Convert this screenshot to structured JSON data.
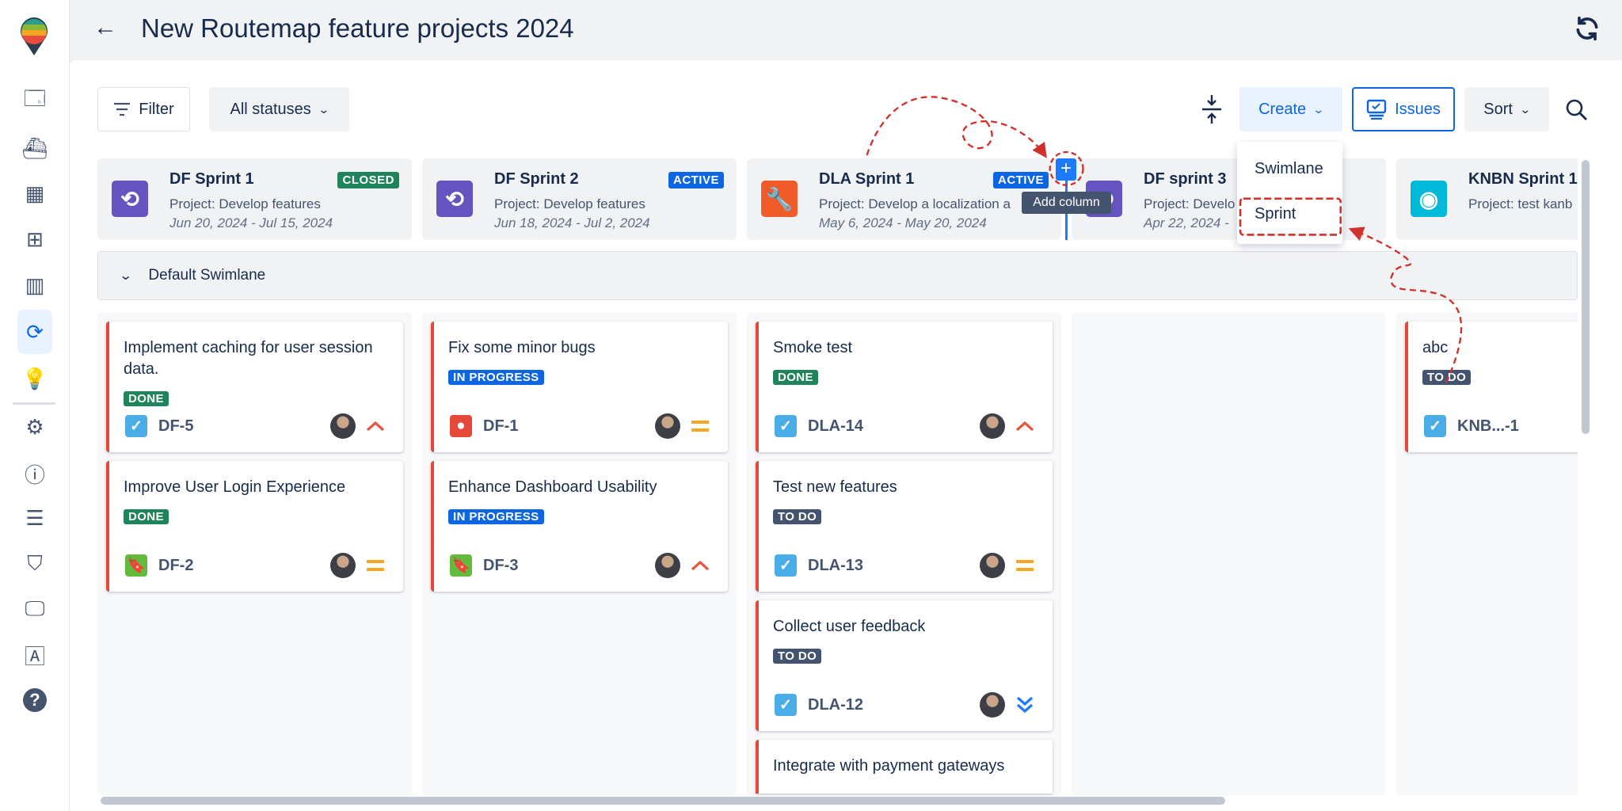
{
  "header": {
    "title": "New Routemap feature projects 2024",
    "back_icon": "arrow-left-icon",
    "refresh_icon": "refresh-icon"
  },
  "sidebar": {
    "items": [
      "board-icon",
      "ship-icon",
      "grid-icon",
      "layout-icon",
      "columns-icon",
      "routemap-icon",
      "lightbulb-icon",
      "gear-icon",
      "info-icon",
      "list-icon",
      "shield-user-icon",
      "monitor-icon",
      "abc-icon",
      "help-icon"
    ],
    "active": "routemap-icon"
  },
  "toolbar": {
    "filter_label": "Filter",
    "status_select": "All statuses",
    "create_label": "Create",
    "issues_label": "Issues",
    "sort_label": "Sort"
  },
  "create_menu": {
    "items": [
      "Swimlane",
      "Sprint"
    ],
    "highlighted": "Sprint"
  },
  "add_column": {
    "tooltip": "Add column"
  },
  "sprints": [
    {
      "name": "DF Sprint 1",
      "status": "CLOSED",
      "project": "Project: Develop features",
      "dates": "Jun 20, 2024 - Jul 15, 2024",
      "icon": "sync-icon"
    },
    {
      "name": "DF Sprint 2",
      "status": "ACTIVE",
      "project": "Project: Develop features",
      "dates": "Jun 18, 2024 - Jul 2, 2024",
      "icon": "sync-icon"
    },
    {
      "name": "DLA Sprint 1",
      "status": "ACTIVE",
      "project": "Project: Develop a localization a",
      "dates": "May 6, 2024 - May 20, 2024",
      "icon": "wrench-icon"
    },
    {
      "name": "DF sprint 3",
      "status": "",
      "project": "Project: Develo",
      "dates": "Apr 22, 2024 -",
      "icon": "sync-icon"
    },
    {
      "name": "KNBN Sprint 1",
      "status": "",
      "project": "Project: test kanb",
      "dates": "",
      "icon": "robot-icon"
    }
  ],
  "swimlane": {
    "label": "Default Swimlane"
  },
  "columns": [
    {
      "cards": [
        {
          "title": "Implement caching for user session data.",
          "status": "DONE",
          "key": "DF-5",
          "type": "task",
          "priority": "high"
        },
        {
          "title": "Improve User Login Experience",
          "status": "DONE",
          "key": "DF-2",
          "type": "story",
          "priority": "medium"
        }
      ]
    },
    {
      "cards": [
        {
          "title": "Fix some minor bugs",
          "status": "IN PROGRESS",
          "key": "DF-1",
          "type": "bug",
          "priority": "medium"
        },
        {
          "title": "Enhance Dashboard Usability",
          "status": "IN PROGRESS",
          "key": "DF-3",
          "type": "story",
          "priority": "high"
        }
      ]
    },
    {
      "cards": [
        {
          "title": "Smoke test",
          "status": "DONE",
          "key": "DLA-14",
          "type": "task",
          "priority": "high"
        },
        {
          "title": "Test new features",
          "status": "TO DO",
          "key": "DLA-13",
          "type": "task",
          "priority": "medium"
        },
        {
          "title": "Collect user feedback",
          "status": "TO DO",
          "key": "DLA-12",
          "type": "task",
          "priority": "lowest"
        },
        {
          "title": "Integrate with payment gateways",
          "status": "",
          "key": "",
          "type": "",
          "priority": ""
        }
      ]
    },
    {
      "cards": []
    },
    {
      "cards": [
        {
          "title": "abc",
          "status": "TO DO",
          "key": "KNB...-1",
          "type": "task",
          "priority": ""
        }
      ]
    }
  ],
  "colors": {
    "done": "#1f845a",
    "in_progress": "#0c66e4",
    "todo": "#44546f",
    "closed": "#1f845a",
    "active": "#0c66e4",
    "accent": "#0c66e4",
    "annotation": "#d0312d"
  }
}
